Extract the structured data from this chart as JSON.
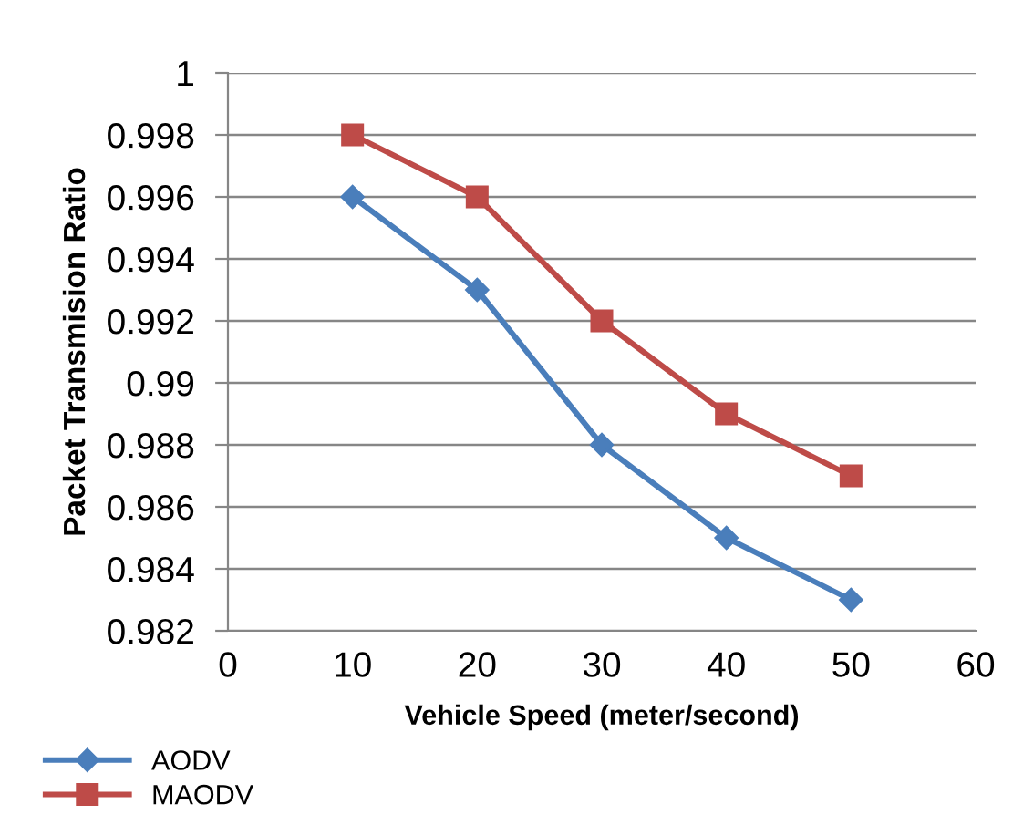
{
  "chart_data": {
    "type": "line",
    "xlabel": "Vehicle Speed (meter/second)",
    "ylabel": "Packet Transmision Ratio",
    "x": [
      10,
      20,
      30,
      40,
      50
    ],
    "series": [
      {
        "name": "AODV",
        "color": "#4a7ebb",
        "marker": "diamond",
        "values": [
          0.996,
          0.993,
          0.988,
          0.985,
          0.983
        ]
      },
      {
        "name": "MAODV",
        "color": "#be4b48",
        "marker": "square",
        "values": [
          0.998,
          0.996,
          0.992,
          0.989,
          0.987
        ]
      }
    ],
    "xlim": [
      0,
      60
    ],
    "xticks": [
      0,
      10,
      20,
      30,
      40,
      50,
      60
    ],
    "ylim": [
      0.982,
      1
    ],
    "yticks": [
      0.982,
      0.984,
      0.986,
      0.988,
      0.99,
      0.992,
      0.994,
      0.996,
      0.998,
      1
    ],
    "grid": "y",
    "legend": "bottom left",
    "line_style": "solid"
  }
}
